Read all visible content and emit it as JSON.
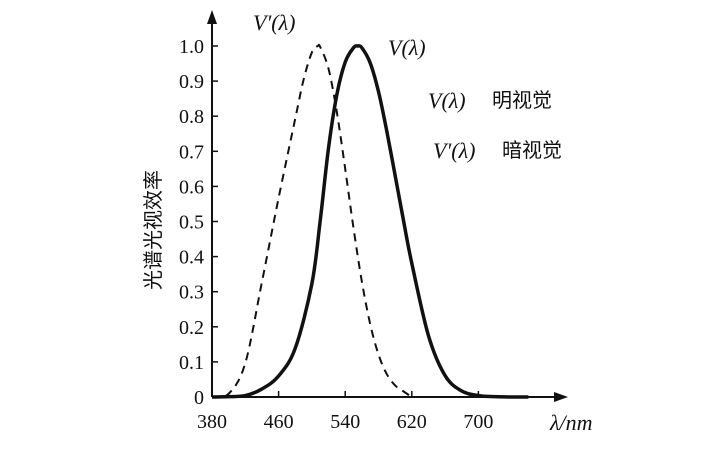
{
  "chart_data": {
    "type": "line",
    "ylabel": "光谱光视效率",
    "xlabel": "λ/nm",
    "xlim": [
      380,
      780
    ],
    "ylim": [
      0,
      1.0
    ],
    "xticks": [
      "380",
      "460",
      "540",
      "620",
      "700"
    ],
    "yticks": [
      "0",
      "0.1",
      "0.2",
      "0.3",
      "0.4",
      "0.5",
      "0.6",
      "0.7",
      "0.8",
      "0.9",
      "1.0"
    ],
    "grid": false,
    "series": [
      {
        "name": "V(λ)",
        "style": "solid",
        "x": [
          380,
          400,
          420,
          440,
          460,
          480,
          500,
          510,
          520,
          530,
          540,
          550,
          555,
          560,
          570,
          580,
          590,
          600,
          610,
          620,
          640,
          660,
          680,
          700,
          720,
          740,
          760
        ],
        "y": [
          0.0,
          0.001,
          0.004,
          0.023,
          0.06,
          0.139,
          0.323,
          0.503,
          0.71,
          0.862,
          0.954,
          0.995,
          1.0,
          0.995,
          0.952,
          0.87,
          0.757,
          0.631,
          0.503,
          0.381,
          0.175,
          0.061,
          0.017,
          0.004,
          0.001,
          0.0,
          0.0
        ]
      },
      {
        "name": "V'(λ)",
        "style": "dashed",
        "x": [
          380,
          400,
          420,
          440,
          460,
          480,
          490,
          500,
          507,
          510,
          520,
          530,
          540,
          550,
          560,
          570,
          580,
          590,
          600,
          610,
          620
        ],
        "y": [
          0.0,
          0.0093,
          0.0966,
          0.328,
          0.567,
          0.793,
          0.904,
          0.982,
          1.0,
          0.997,
          0.935,
          0.811,
          0.65,
          0.481,
          0.329,
          0.208,
          0.121,
          0.065,
          0.033,
          0.016,
          0.0
        ]
      }
    ],
    "annotations": {
      "curve_label_v": "V(λ)",
      "curve_label_vp": "V′(λ)",
      "legend_v_symbol": "V(λ)",
      "legend_v_text": "明视觉",
      "legend_vp_symbol": "V′(λ)",
      "legend_vp_text": "暗视觉"
    }
  }
}
